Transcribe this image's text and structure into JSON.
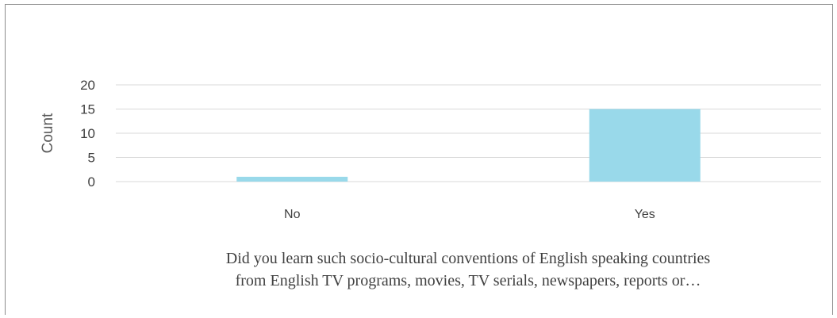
{
  "chart_data": {
    "type": "bar",
    "categories": [
      "No",
      "Yes"
    ],
    "values": [
      1,
      15
    ],
    "title": "",
    "xlabel_lines": [
      "Did you learn such socio-cultural conventions of English speaking countries",
      "from English TV programs, movies, TV serials, newspapers, reports or…"
    ],
    "ylabel": "Count",
    "ylim": [
      0,
      20
    ],
    "yticks": [
      "0",
      "5",
      "10",
      "15",
      "20"
    ],
    "grid": true,
    "legend": false,
    "colors": {
      "bar": "#99d9ea",
      "grid": "#d9d9d9",
      "frame": "#8c8c8c",
      "text": "#404040"
    }
  }
}
